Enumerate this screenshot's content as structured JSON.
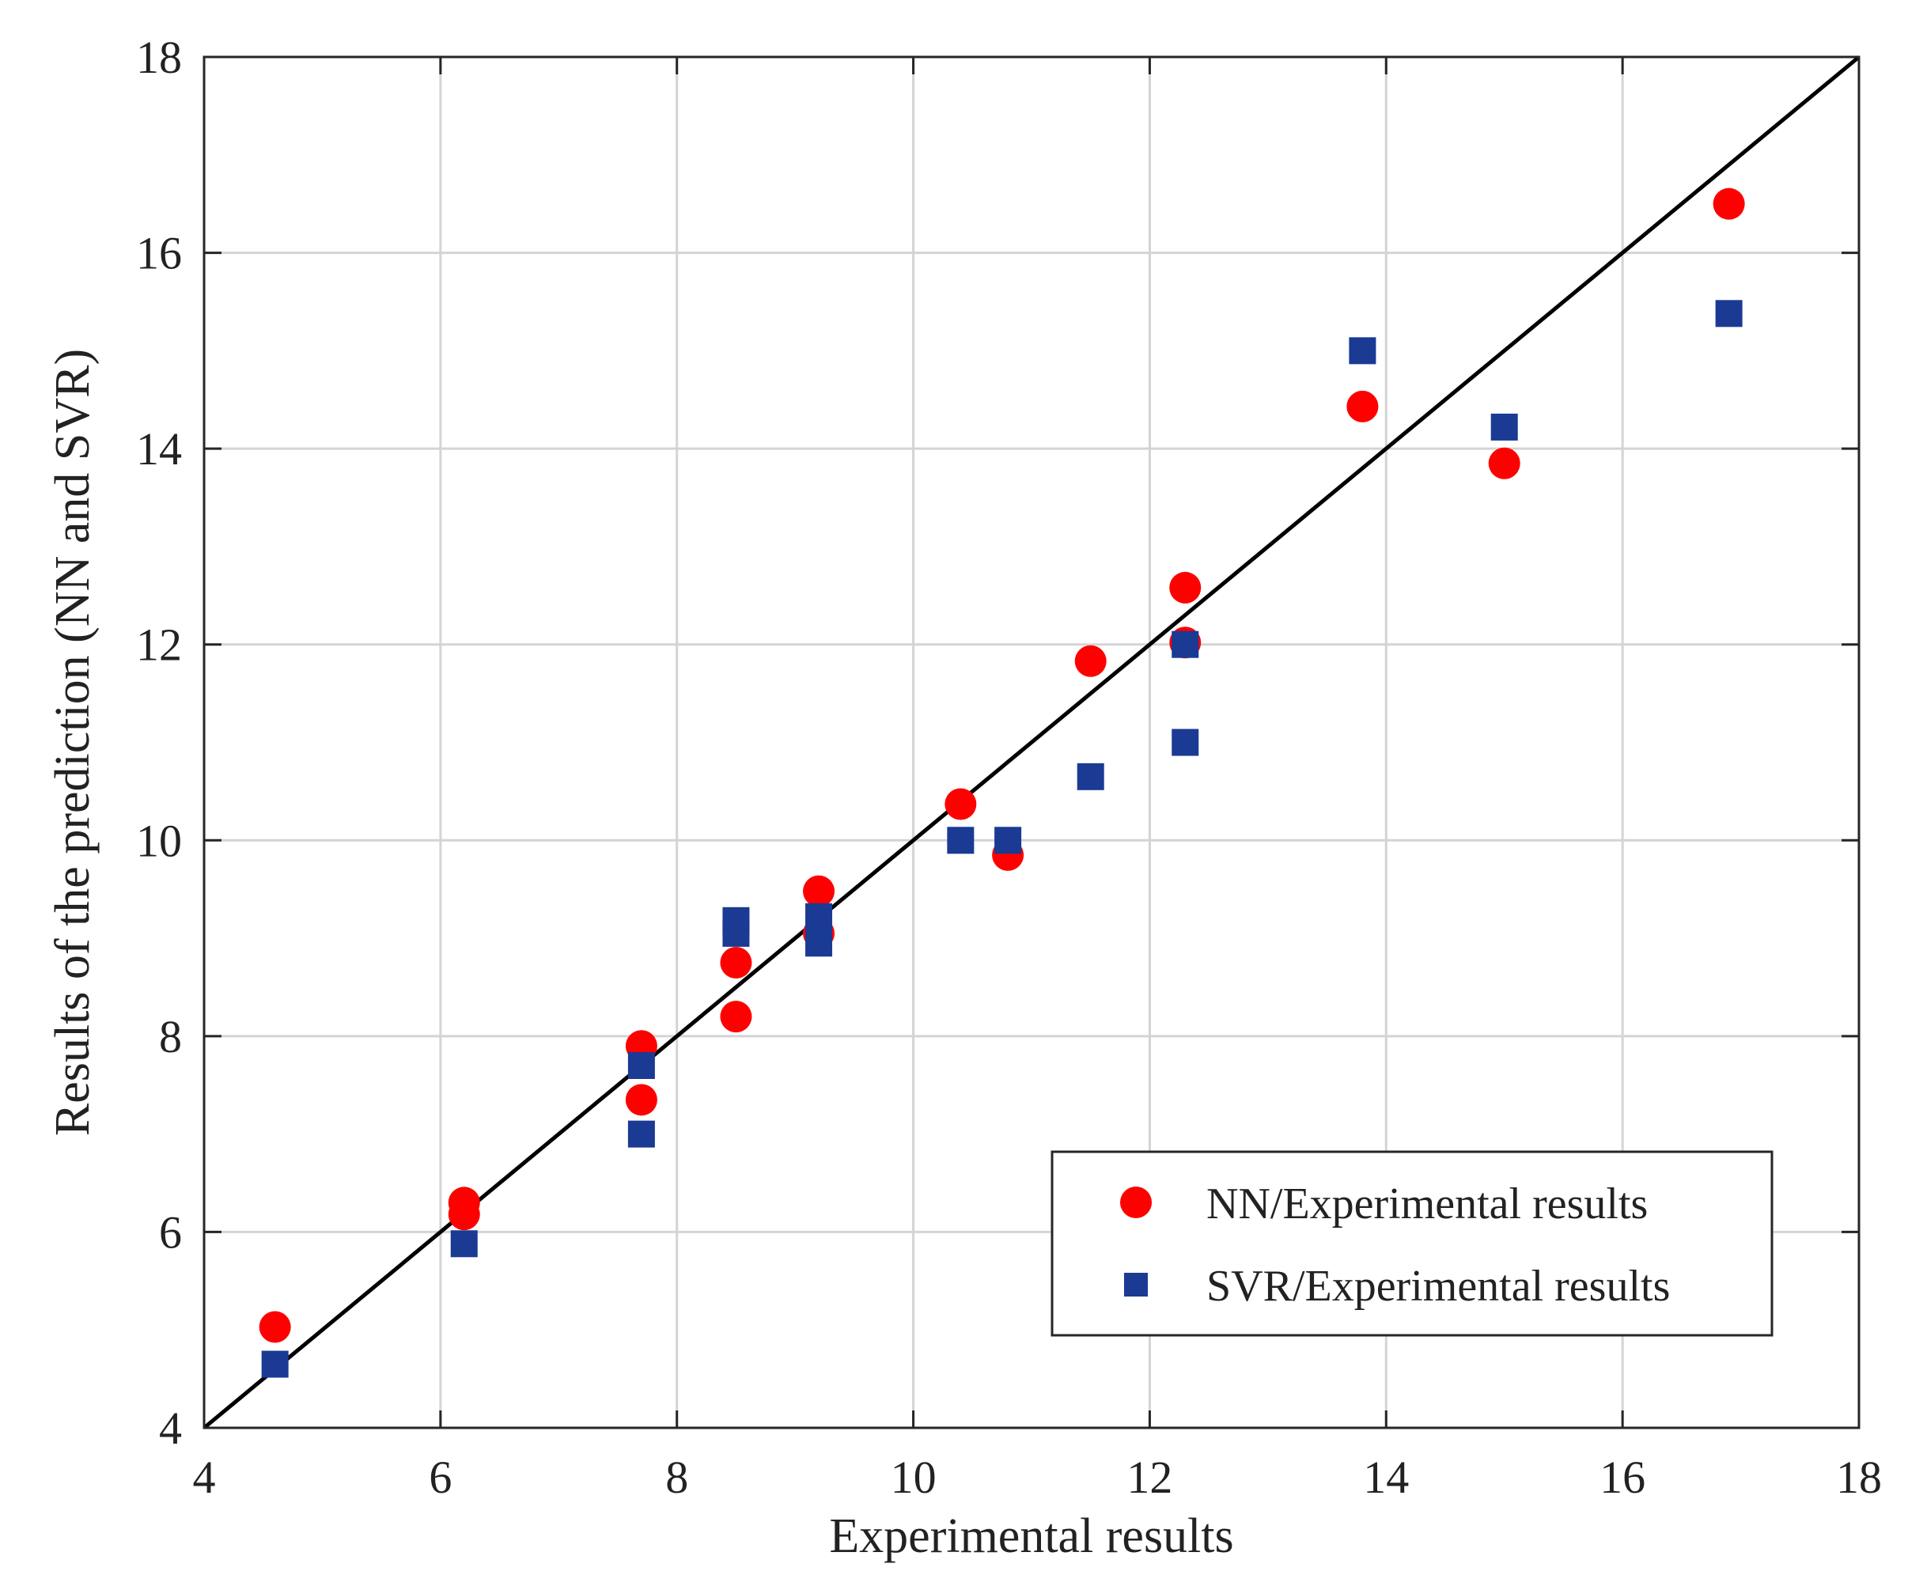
{
  "chart_data": {
    "type": "scatter",
    "title": "",
    "xlabel": "Experimental results",
    "ylabel": "Results of the prediction (NN and SVR)",
    "xlim": [
      4,
      18
    ],
    "ylim": [
      4,
      18
    ],
    "xticks": [
      4,
      6,
      8,
      10,
      12,
      14,
      16,
      18
    ],
    "yticks": [
      4,
      6,
      8,
      10,
      12,
      14,
      16,
      18
    ],
    "xtick_labels": [
      "4",
      "6",
      "8",
      "10",
      "12",
      "14",
      "16",
      "18"
    ],
    "ytick_labels": [
      "4",
      "6",
      "8",
      "10",
      "12",
      "14",
      "16",
      "18"
    ],
    "grid": true,
    "legend_position": "bottom-right",
    "reference_line": {
      "x": [
        4,
        18
      ],
      "y": [
        4,
        18
      ],
      "color": "#000000"
    },
    "series": [
      {
        "name": "NN/Experimental results",
        "marker": "circle",
        "color": "#ff0000",
        "x": [
          4.6,
          6.2,
          6.2,
          7.7,
          7.7,
          8.5,
          8.5,
          9.2,
          9.2,
          10.4,
          10.8,
          11.5,
          12.3,
          12.3,
          13.8,
          15.0,
          16.9
        ],
        "y": [
          5.03,
          6.3,
          6.18,
          7.9,
          7.35,
          8.75,
          8.2,
          9.48,
          9.05,
          10.37,
          9.85,
          11.83,
          12.58,
          12.02,
          14.43,
          13.85,
          16.5
        ]
      },
      {
        "name": "SVR/Experimental results",
        "marker": "square",
        "color": "#1a3a94",
        "x": [
          4.6,
          6.2,
          7.7,
          7.7,
          8.5,
          8.5,
          9.2,
          9.2,
          10.4,
          10.8,
          11.5,
          12.3,
          12.3,
          13.8,
          15.0,
          16.9
        ],
        "y": [
          4.65,
          5.88,
          7.7,
          7.0,
          9.18,
          9.05,
          9.22,
          8.95,
          10.0,
          10.0,
          10.65,
          12.0,
          11.0,
          15.0,
          14.22,
          15.38
        ]
      }
    ]
  }
}
